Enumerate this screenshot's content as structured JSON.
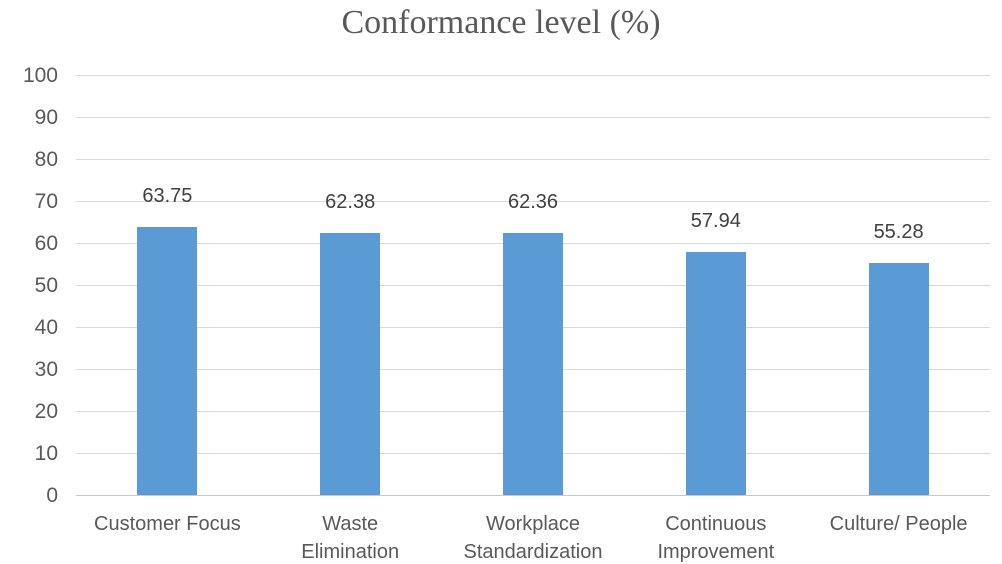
{
  "chart_data": {
    "type": "bar",
    "title": "Conformance level (%)",
    "categories": [
      "Customer Focus",
      "Waste Elimination",
      "Workplace Standardization",
      "Continuous Improvement",
      "Culture/ People"
    ],
    "category_lines": [
      [
        "Customer Focus"
      ],
      [
        "Waste",
        "Elimination"
      ],
      [
        "Workplace",
        "Standardization"
      ],
      [
        "Continuous",
        "Improvement"
      ],
      [
        "Culture/ People"
      ]
    ],
    "values": [
      63.75,
      62.38,
      62.36,
      57.94,
      55.28
    ],
    "value_labels": [
      "63.75",
      "62.38",
      "62.36",
      "57.94",
      "55.28"
    ],
    "xlabel": "",
    "ylabel": "",
    "ylim": [
      0,
      100
    ],
    "yticks": [
      0,
      10,
      20,
      30,
      40,
      50,
      60,
      70,
      80,
      90,
      100
    ],
    "grid": true,
    "legend": "none",
    "colors": {
      "bar": "#5b9bd5",
      "gridline": "#d9d9d9",
      "axis_text": "#595959",
      "value_label_text": "#404040",
      "title_text": "#595959"
    }
  }
}
